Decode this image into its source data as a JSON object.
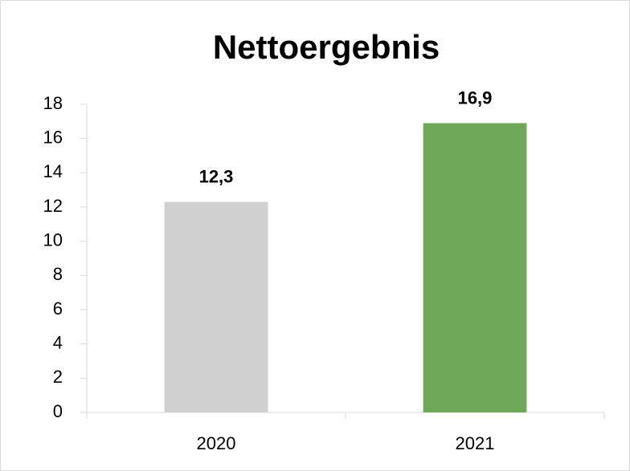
{
  "chart_data": {
    "type": "bar",
    "title": "Nettoergebnis",
    "categories": [
      "2020",
      "2021"
    ],
    "values": [
      12.3,
      16.9
    ],
    "value_labels": [
      "12,3",
      "16,9"
    ],
    "colors": [
      "#d0d0d0",
      "#70a85a"
    ],
    "ylim": [
      0,
      18
    ],
    "yticks": [
      0,
      2,
      4,
      6,
      8,
      10,
      12,
      14,
      16,
      18
    ],
    "grid": false
  }
}
